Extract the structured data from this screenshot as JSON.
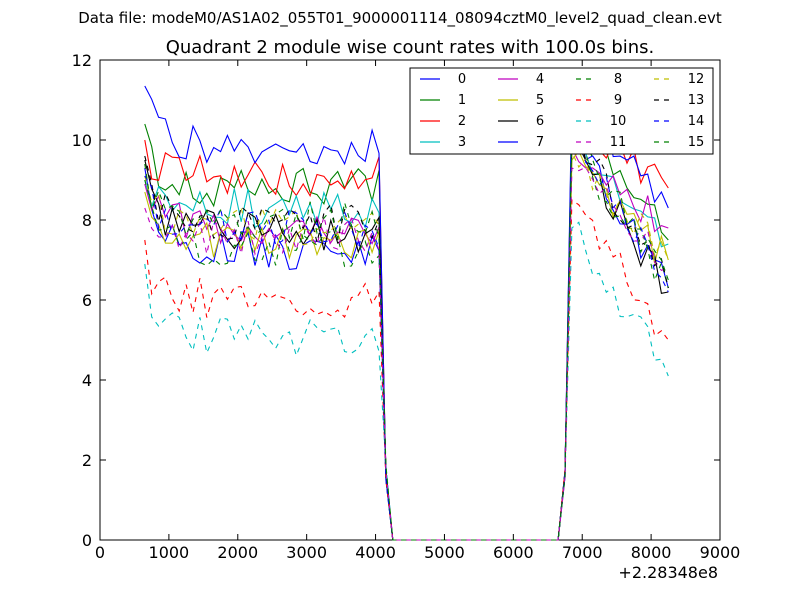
{
  "figure": {
    "suptitle": "Data file: modeM0/AS1A02_055T01_9000001114_08094cztM0_level2_quad_clean.evt"
  },
  "chart_data": {
    "type": "line",
    "title": "Quadrant 2 module wise count rates with 100.0s bins.",
    "xlabel": "",
    "ylabel": "",
    "x_offset_label": "+2.28348e8",
    "xlim": [
      0,
      9000
    ],
    "ylim": [
      0,
      12
    ],
    "x_ticks": [
      0,
      1000,
      2000,
      3000,
      4000,
      5000,
      6000,
      7000,
      8000,
      9000
    ],
    "y_ticks": [
      0,
      2,
      4,
      6,
      8,
      10,
      12
    ],
    "x_tick_labels": [
      "0",
      "1000",
      "2000",
      "3000",
      "4000",
      "5000",
      "6000",
      "7000",
      "8000",
      "9000"
    ],
    "y_tick_labels": [
      "0",
      "2",
      "4",
      "6",
      "8",
      "10",
      "12"
    ],
    "grid": false,
    "legend_position": "top-right",
    "x_segments": {
      "first": {
        "start": 650,
        "step": 100,
        "count": 37
      },
      "gap": [
        4450,
        4550,
        4650,
        4750,
        4850,
        4950,
        5050,
        5150,
        5250,
        5350,
        5450,
        5550,
        5650,
        5750,
        5850,
        5950,
        6050,
        6150,
        6250,
        6350,
        6450,
        6550
      ],
      "second": {
        "start": 6650,
        "step": 100,
        "count": 17
      }
    },
    "series": [
      {
        "name": "0",
        "color": "#0000ff",
        "dash": "solid",
        "base": 7.2,
        "first": 9.3,
        "second_end": 6.3,
        "peak": 10.2,
        "seed": 1
      },
      {
        "name": "1",
        "color": "#008000",
        "dash": "solid",
        "base": 8.8,
        "first": 10.4,
        "second_end": 7.5,
        "peak": 10.8,
        "seed": 2
      },
      {
        "name": "2",
        "color": "#ff0000",
        "dash": "solid",
        "base": 9.1,
        "first": 10.0,
        "second_end": 8.8,
        "peak": 10.6,
        "seed": 3
      },
      {
        "name": "3",
        "color": "#00bfbf",
        "dash": "solid",
        "base": 8.3,
        "first": 9.0,
        "second_end": 7.4,
        "peak": 10.1,
        "seed": 4
      },
      {
        "name": "4",
        "color": "#bf00bf",
        "dash": "solid",
        "base": 7.9,
        "first": 8.9,
        "second_end": 7.8,
        "peak": 9.8,
        "seed": 5
      },
      {
        "name": "5",
        "color": "#bfbf00",
        "dash": "solid",
        "base": 7.4,
        "first": 8.7,
        "second_end": 7.0,
        "peak": 9.5,
        "seed": 6
      },
      {
        "name": "6",
        "color": "#000000",
        "dash": "solid",
        "base": 7.7,
        "first": 9.5,
        "second_end": 6.2,
        "peak": 10.0,
        "seed": 7
      },
      {
        "name": "7",
        "color": "#0000ff",
        "dash": "solid",
        "base": 9.9,
        "first": 11.35,
        "second_end": 8.3,
        "peak": 11.1,
        "seed": 8
      },
      {
        "name": "8",
        "color": "#008000",
        "dash": "dashed",
        "base": 7.3,
        "first": 9.0,
        "second_end": 6.3,
        "peak": 9.9,
        "seed": 9
      },
      {
        "name": "9",
        "color": "#ff0000",
        "dash": "dashed",
        "base": 6.0,
        "first": 7.5,
        "second_end": 5.0,
        "peak": 8.5,
        "seed": 10
      },
      {
        "name": "10",
        "color": "#00bfbf",
        "dash": "dashed",
        "base": 5.1,
        "first": 6.9,
        "second_end": 4.1,
        "peak": 7.8,
        "seed": 11
      },
      {
        "name": "11",
        "color": "#bf00bf",
        "dash": "dashed",
        "base": 7.6,
        "first": 8.3,
        "second_end": 6.8,
        "peak": 9.3,
        "seed": 12
      },
      {
        "name": "12",
        "color": "#bfbf00",
        "dash": "dashed",
        "base": 7.8,
        "first": 9.1,
        "second_end": 7.0,
        "peak": 9.7,
        "seed": 13
      },
      {
        "name": "13",
        "color": "#000000",
        "dash": "dashed",
        "base": 7.9,
        "first": 9.6,
        "second_end": 6.3,
        "peak": 10.3,
        "seed": 14
      },
      {
        "name": "14",
        "color": "#0000ff",
        "dash": "dashed",
        "base": 7.8,
        "first": 9.1,
        "second_end": 6.2,
        "peak": 10.5,
        "seed": 15
      },
      {
        "name": "15",
        "color": "#008000",
        "dash": "dashed",
        "base": 8.0,
        "first": 9.4,
        "second_end": 6.5,
        "peak": 10.4,
        "seed": 16
      }
    ]
  }
}
